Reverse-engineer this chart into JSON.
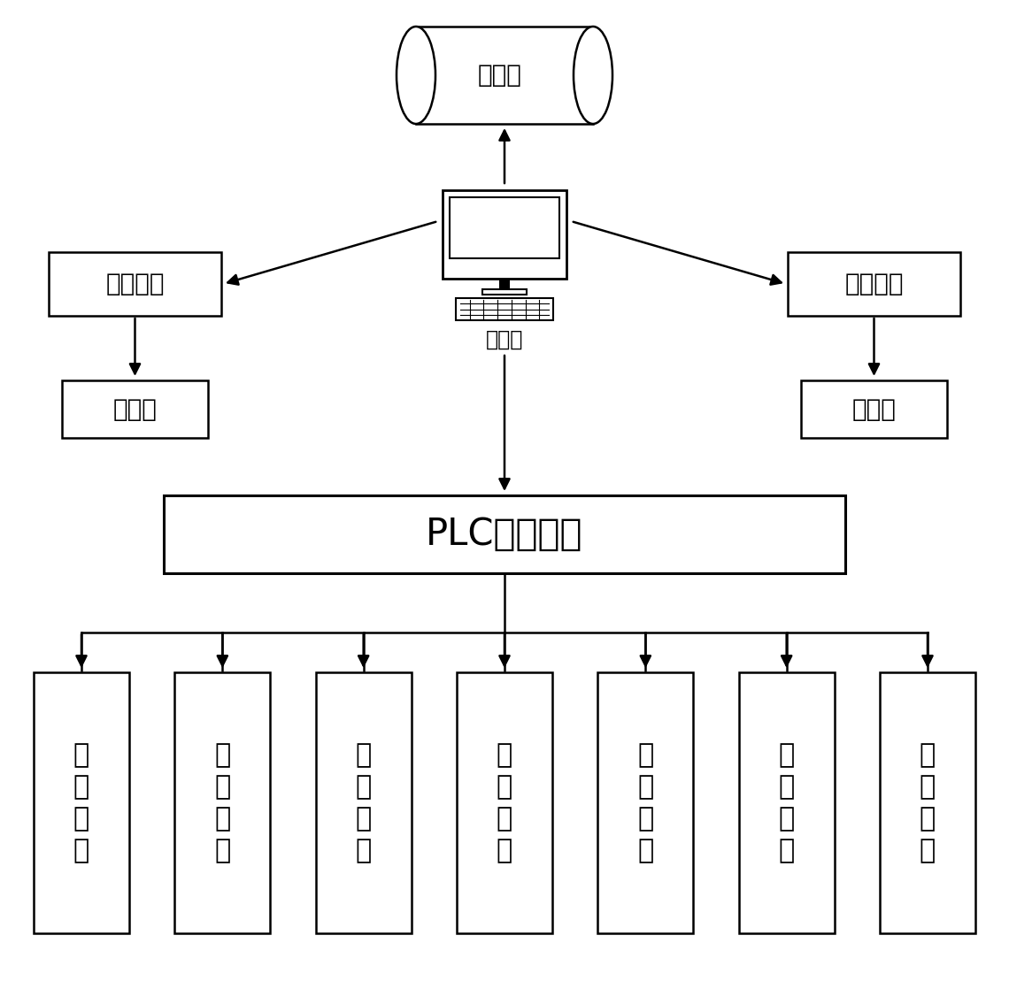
{
  "bg_color": "#ffffff",
  "text_color": "#000000",
  "box_edge_color": "#000000",
  "box_face_color": "#ffffff",
  "arrow_color": "#000000",
  "font_size_large": 26,
  "font_size_medium": 20,
  "font_size_small": 17,
  "font_size_plc": 30,
  "font_size_module": 22,
  "database_label": "数据库",
  "computer_label": "计算机",
  "scan_system_label": "扫码系统",
  "spray_system_label": "喷码系统",
  "scanner_label": "扫码器",
  "sprayer_label": "喷码器",
  "plc_label": "PLC控制模块",
  "bottom_modules": [
    "上\n料\n模\n块",
    "翻\n转\n模\n块",
    "顶\n出\n模\n块",
    "扫\n码\n模\n块",
    "喷\n码\n模\n块",
    "装\n盘\n模\n块",
    "分\n选\n模\n块"
  ]
}
